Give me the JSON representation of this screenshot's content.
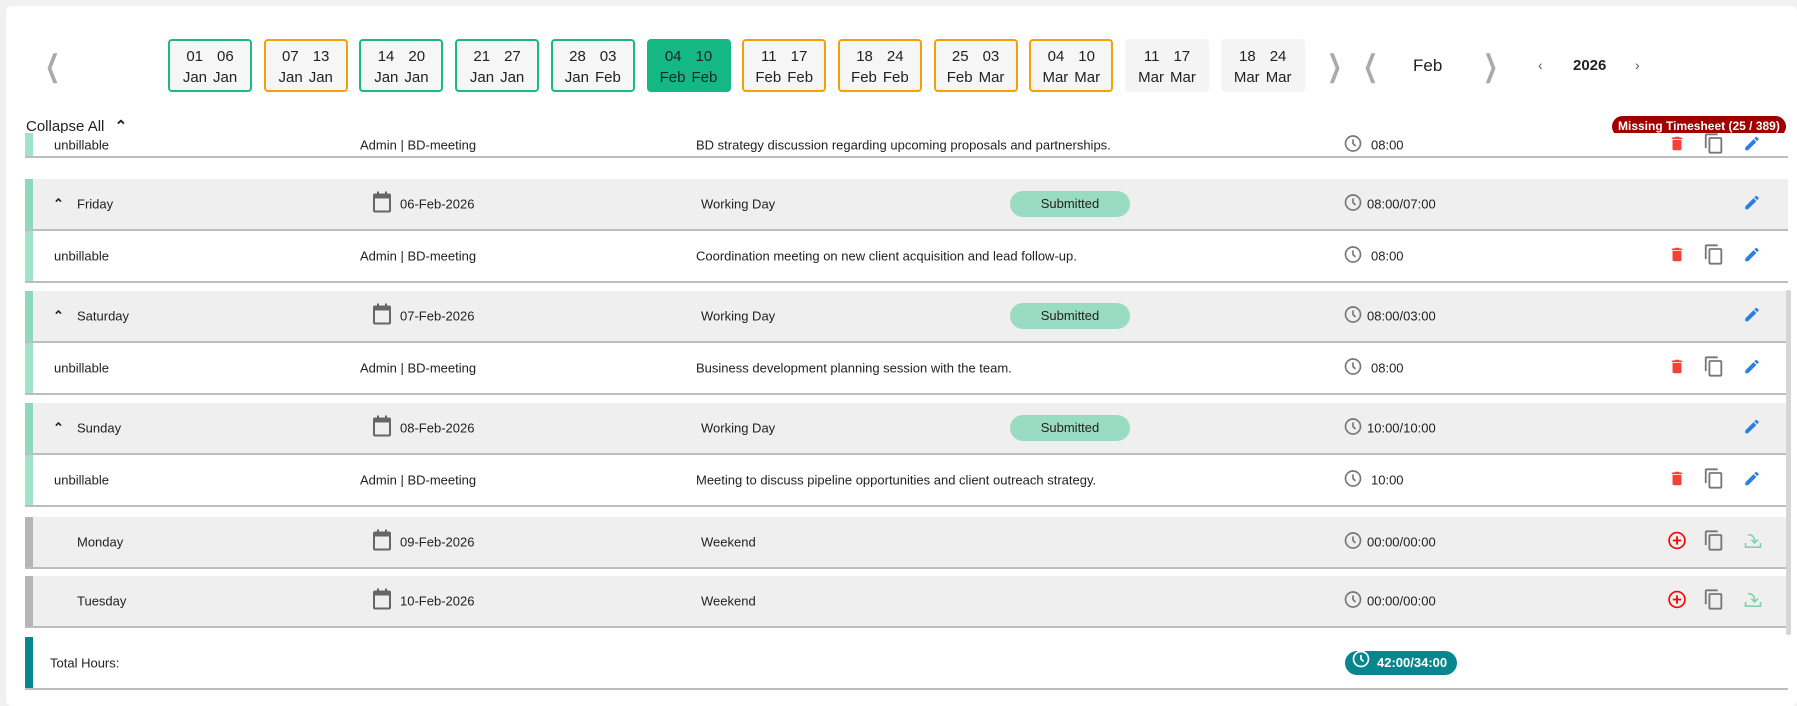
{
  "week_selector": {
    "weeks": [
      {
        "start": "01",
        "start_month": "Jan",
        "end": "06",
        "end_month": "Jan",
        "status": "green"
      },
      {
        "start": "07",
        "start_month": "Jan",
        "end": "13",
        "end_month": "Jan",
        "status": "orange"
      },
      {
        "start": "14",
        "start_month": "Jan",
        "end": "20",
        "end_month": "Jan",
        "status": "green"
      },
      {
        "start": "21",
        "start_month": "Jan",
        "end": "27",
        "end_month": "Jan",
        "status": "green"
      },
      {
        "start": "28",
        "start_month": "Jan",
        "end": "03",
        "end_month": "Feb",
        "status": "green"
      },
      {
        "start": "04",
        "start_month": "Feb",
        "end": "10",
        "end_month": "Feb",
        "status": "selected"
      },
      {
        "start": "11",
        "start_month": "Feb",
        "end": "17",
        "end_month": "Feb",
        "status": "orange"
      },
      {
        "start": "18",
        "start_month": "Feb",
        "end": "24",
        "end_month": "Feb",
        "status": "orange"
      },
      {
        "start": "25",
        "start_month": "Feb",
        "end": "03",
        "end_month": "Mar",
        "status": "orange"
      },
      {
        "start": "04",
        "start_month": "Mar",
        "end": "10",
        "end_month": "Mar",
        "status": "orange"
      },
      {
        "start": "11",
        "start_month": "Mar",
        "end": "17",
        "end_month": "Mar",
        "status": "grey"
      },
      {
        "start": "18",
        "start_month": "Mar",
        "end": "24",
        "end_month": "Mar",
        "status": "grey"
      }
    ]
  },
  "month": "Feb",
  "year": "2026",
  "collapse_all": "Collapse All",
  "missing_badge": "Missing Timesheet (25 / 389)",
  "colors": {
    "green": "#1ab985",
    "orange": "#f4a00a",
    "selected": "#13b883",
    "missing": "#a00000",
    "total": "#08868f",
    "delete": "#f44336",
    "edit": "#2b7de9"
  },
  "rows": [
    {
      "type": "detail",
      "billing": "unbillable",
      "category": "Admin | BD-meeting",
      "description": "BD strategy discussion regarding upcoming proposals and partnerships.",
      "time": "08:00",
      "partial": true
    },
    {
      "type": "header",
      "day": "Friday",
      "date": "06-Feb-2026",
      "day_type": "Working Day",
      "status": "Submitted",
      "time": "08:00/07:00"
    },
    {
      "type": "detail",
      "billing": "unbillable",
      "category": "Admin | BD-meeting",
      "description": "Coordination meeting on new client acquisition and lead follow-up.",
      "time": "08:00"
    },
    {
      "type": "header",
      "day": "Saturday",
      "date": "07-Feb-2026",
      "day_type": "Working Day",
      "status": "Submitted",
      "time": "08:00/03:00"
    },
    {
      "type": "detail",
      "billing": "unbillable",
      "category": "Admin | BD-meeting",
      "description": "Business development planning session with the team.",
      "time": "08:00"
    },
    {
      "type": "header",
      "day": "Sunday",
      "date": "08-Feb-2026",
      "day_type": "Working Day",
      "status": "Submitted",
      "time": "10:00/10:00"
    },
    {
      "type": "detail",
      "billing": "unbillable",
      "category": "Admin | BD-meeting",
      "description": "Meeting to discuss pipeline opportunities and client outreach strategy.",
      "time": "10:00"
    },
    {
      "type": "weekend",
      "day": "Monday",
      "date": "09-Feb-2026",
      "day_type": "Weekend",
      "time": "00:00/00:00"
    },
    {
      "type": "weekend",
      "day": "Tuesday",
      "date": "10-Feb-2026",
      "day_type": "Weekend",
      "time": "00:00/00:00"
    }
  ],
  "total": {
    "label": "Total Hours:",
    "value": "42:00/34:00"
  }
}
